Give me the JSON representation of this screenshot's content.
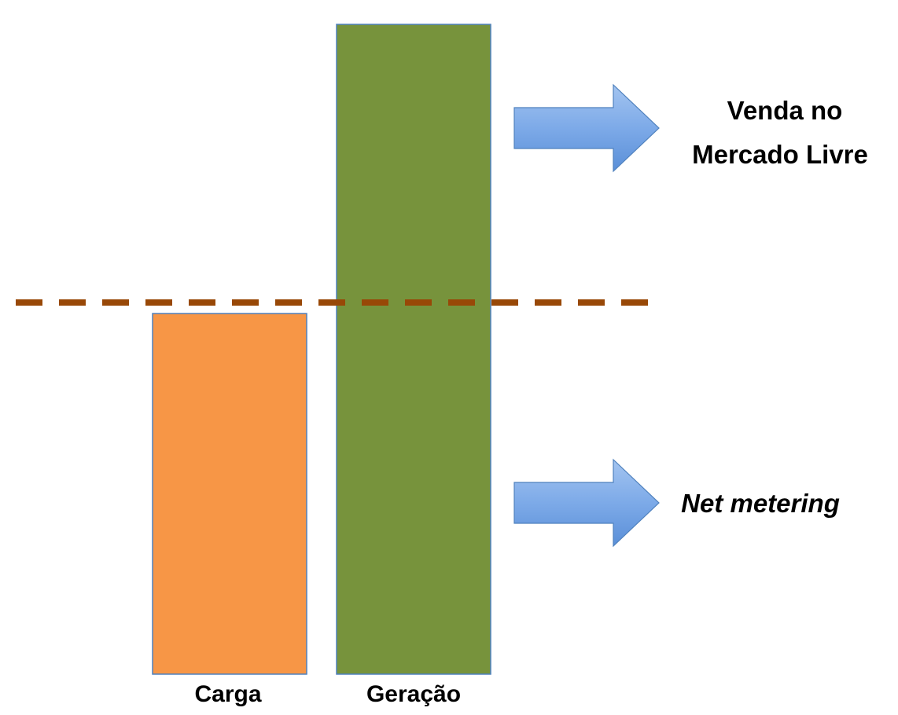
{
  "diagram": {
    "bars": [
      {
        "label": "Carga",
        "level": 0.555,
        "color": "#F79646"
      },
      {
        "label": "Geração",
        "level": 1.0,
        "color": "#77933C"
      }
    ],
    "threshold": {
      "color": "#984807",
      "style": "dashed"
    },
    "arrows": [
      {
        "label_lines": [
          "Venda no",
          "Mercado Livre"
        ],
        "italic": false,
        "color": "#4F81BD"
      },
      {
        "label_lines": [
          "Net metering"
        ],
        "italic": true,
        "color": "#4F81BD"
      }
    ],
    "bar_outline_color": "#4F81BD"
  }
}
